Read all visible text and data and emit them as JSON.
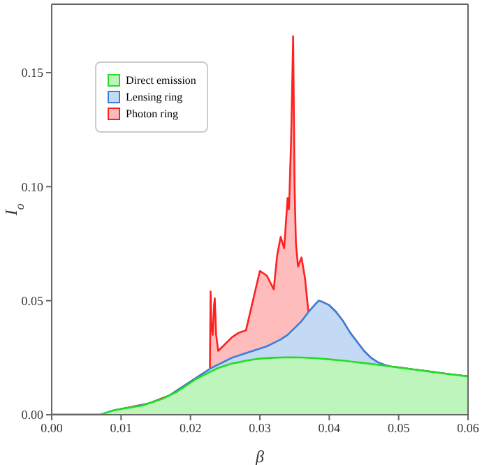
{
  "chart_data": {
    "type": "area",
    "xlabel": "β",
    "ylabel": "I$_{o}$",
    "xlim": [
      0,
      0.06
    ],
    "ylim": [
      0,
      0.18
    ],
    "xticks": [
      {
        "value": 0,
        "label": "0.00"
      },
      {
        "value": 0.01,
        "label": "0.01"
      },
      {
        "value": 0.02,
        "label": "0.02"
      },
      {
        "value": 0.03,
        "label": "0.03"
      },
      {
        "value": 0.04,
        "label": "0.04"
      },
      {
        "value": 0.05,
        "label": "0.05"
      },
      {
        "value": 0.06,
        "label": "0.06"
      }
    ],
    "yticks": [
      {
        "value": 0,
        "label": "0.00"
      },
      {
        "value": 0.05,
        "label": "0.05"
      },
      {
        "value": 0.1,
        "label": "0.10"
      },
      {
        "value": 0.15,
        "label": "0.15"
      }
    ],
    "legend": "top left",
    "grid": false,
    "series": [
      {
        "name": "Photon ring",
        "color": "#ff2020",
        "x": [
          0,
          0.007,
          0.01,
          0.014,
          0.017,
          0.019,
          0.021,
          0.0228,
          0.0229,
          0.023,
          0.0232,
          0.0234,
          0.0235,
          0.0237,
          0.024,
          0.025,
          0.026,
          0.027,
          0.028,
          0.029,
          0.03,
          0.031,
          0.032,
          0.0325,
          0.033,
          0.0335,
          0.034,
          0.0342,
          0.0345,
          0.0348,
          0.035,
          0.0352,
          0.0355,
          0.036,
          0.0365,
          0.037,
          0.038,
          0.0385,
          0.039,
          0.04,
          0.041,
          0.042,
          0.043,
          0.044,
          0.045,
          0.046,
          0.047,
          0.048,
          0.049,
          0.05,
          0.052,
          0.054,
          0.056,
          0.058,
          0.06
        ],
        "values": [
          0,
          0,
          0.0025,
          0.005,
          0.0085,
          0.0125,
          0.0165,
          0.02,
          0.054,
          0.04,
          0.035,
          0.048,
          0.051,
          0.035,
          0.028,
          0.031,
          0.034,
          0.036,
          0.037,
          0.05,
          0.063,
          0.061,
          0.055,
          0.07,
          0.078,
          0.073,
          0.095,
          0.09,
          0.12,
          0.166,
          0.1,
          0.075,
          0.065,
          0.069,
          0.06,
          0.045,
          0.0485,
          0.05,
          0.0495,
          0.048,
          0.045,
          0.041,
          0.036,
          0.032,
          0.028,
          0.025,
          0.023,
          0.0218,
          0.021,
          0.0207,
          0.0199,
          0.0191,
          0.0183,
          0.0175,
          0.0168
        ]
      },
      {
        "name": "Lensing ring",
        "color": "#3a80d8",
        "x": [
          0,
          0.007,
          0.008,
          0.009,
          0.01,
          0.012,
          0.014,
          0.016,
          0.017,
          0.018,
          0.019,
          0.02,
          0.021,
          0.022,
          0.023,
          0.024,
          0.025,
          0.026,
          0.027,
          0.028,
          0.029,
          0.03,
          0.031,
          0.032,
          0.033,
          0.034,
          0.035,
          0.036,
          0.037,
          0.038,
          0.0385,
          0.039,
          0.04,
          0.041,
          0.042,
          0.043,
          0.044,
          0.045,
          0.046,
          0.047,
          0.048,
          0.049,
          0.05,
          0.052,
          0.054,
          0.056,
          0.058,
          0.06
        ],
        "values": [
          0,
          0,
          0.001,
          0.002,
          0.0025,
          0.0035,
          0.005,
          0.007,
          0.0085,
          0.0105,
          0.0125,
          0.0145,
          0.0165,
          0.0185,
          0.0205,
          0.022,
          0.0235,
          0.025,
          0.026,
          0.027,
          0.028,
          0.029,
          0.03,
          0.0315,
          0.033,
          0.035,
          0.038,
          0.041,
          0.045,
          0.0485,
          0.05,
          0.0495,
          0.048,
          0.045,
          0.041,
          0.036,
          0.032,
          0.028,
          0.025,
          0.023,
          0.0218,
          0.021,
          0.0207,
          0.0199,
          0.0191,
          0.0183,
          0.0175,
          0.0168
        ]
      },
      {
        "name": "Direct emission",
        "color": "#22dd22",
        "x": [
          0,
          0.007,
          0.008,
          0.009,
          0.01,
          0.011,
          0.012,
          0.013,
          0.014,
          0.015,
          0.016,
          0.017,
          0.018,
          0.019,
          0.02,
          0.021,
          0.022,
          0.023,
          0.024,
          0.025,
          0.026,
          0.027,
          0.028,
          0.029,
          0.03,
          0.032,
          0.034,
          0.036,
          0.038,
          0.04,
          0.042,
          0.044,
          0.046,
          0.048,
          0.05,
          0.052,
          0.054,
          0.056,
          0.058,
          0.06
        ],
        "values": [
          0,
          0,
          0.001,
          0.002,
          0.0025,
          0.003,
          0.0035,
          0.004,
          0.005,
          0.006,
          0.007,
          0.0085,
          0.01,
          0.012,
          0.014,
          0.016,
          0.0175,
          0.019,
          0.0205,
          0.0215,
          0.0225,
          0.023,
          0.0237,
          0.0242,
          0.0246,
          0.025,
          0.0252,
          0.0251,
          0.0248,
          0.0243,
          0.0237,
          0.023,
          0.0223,
          0.0215,
          0.0207,
          0.0199,
          0.0191,
          0.0183,
          0.0175,
          0.0168
        ]
      }
    ]
  }
}
